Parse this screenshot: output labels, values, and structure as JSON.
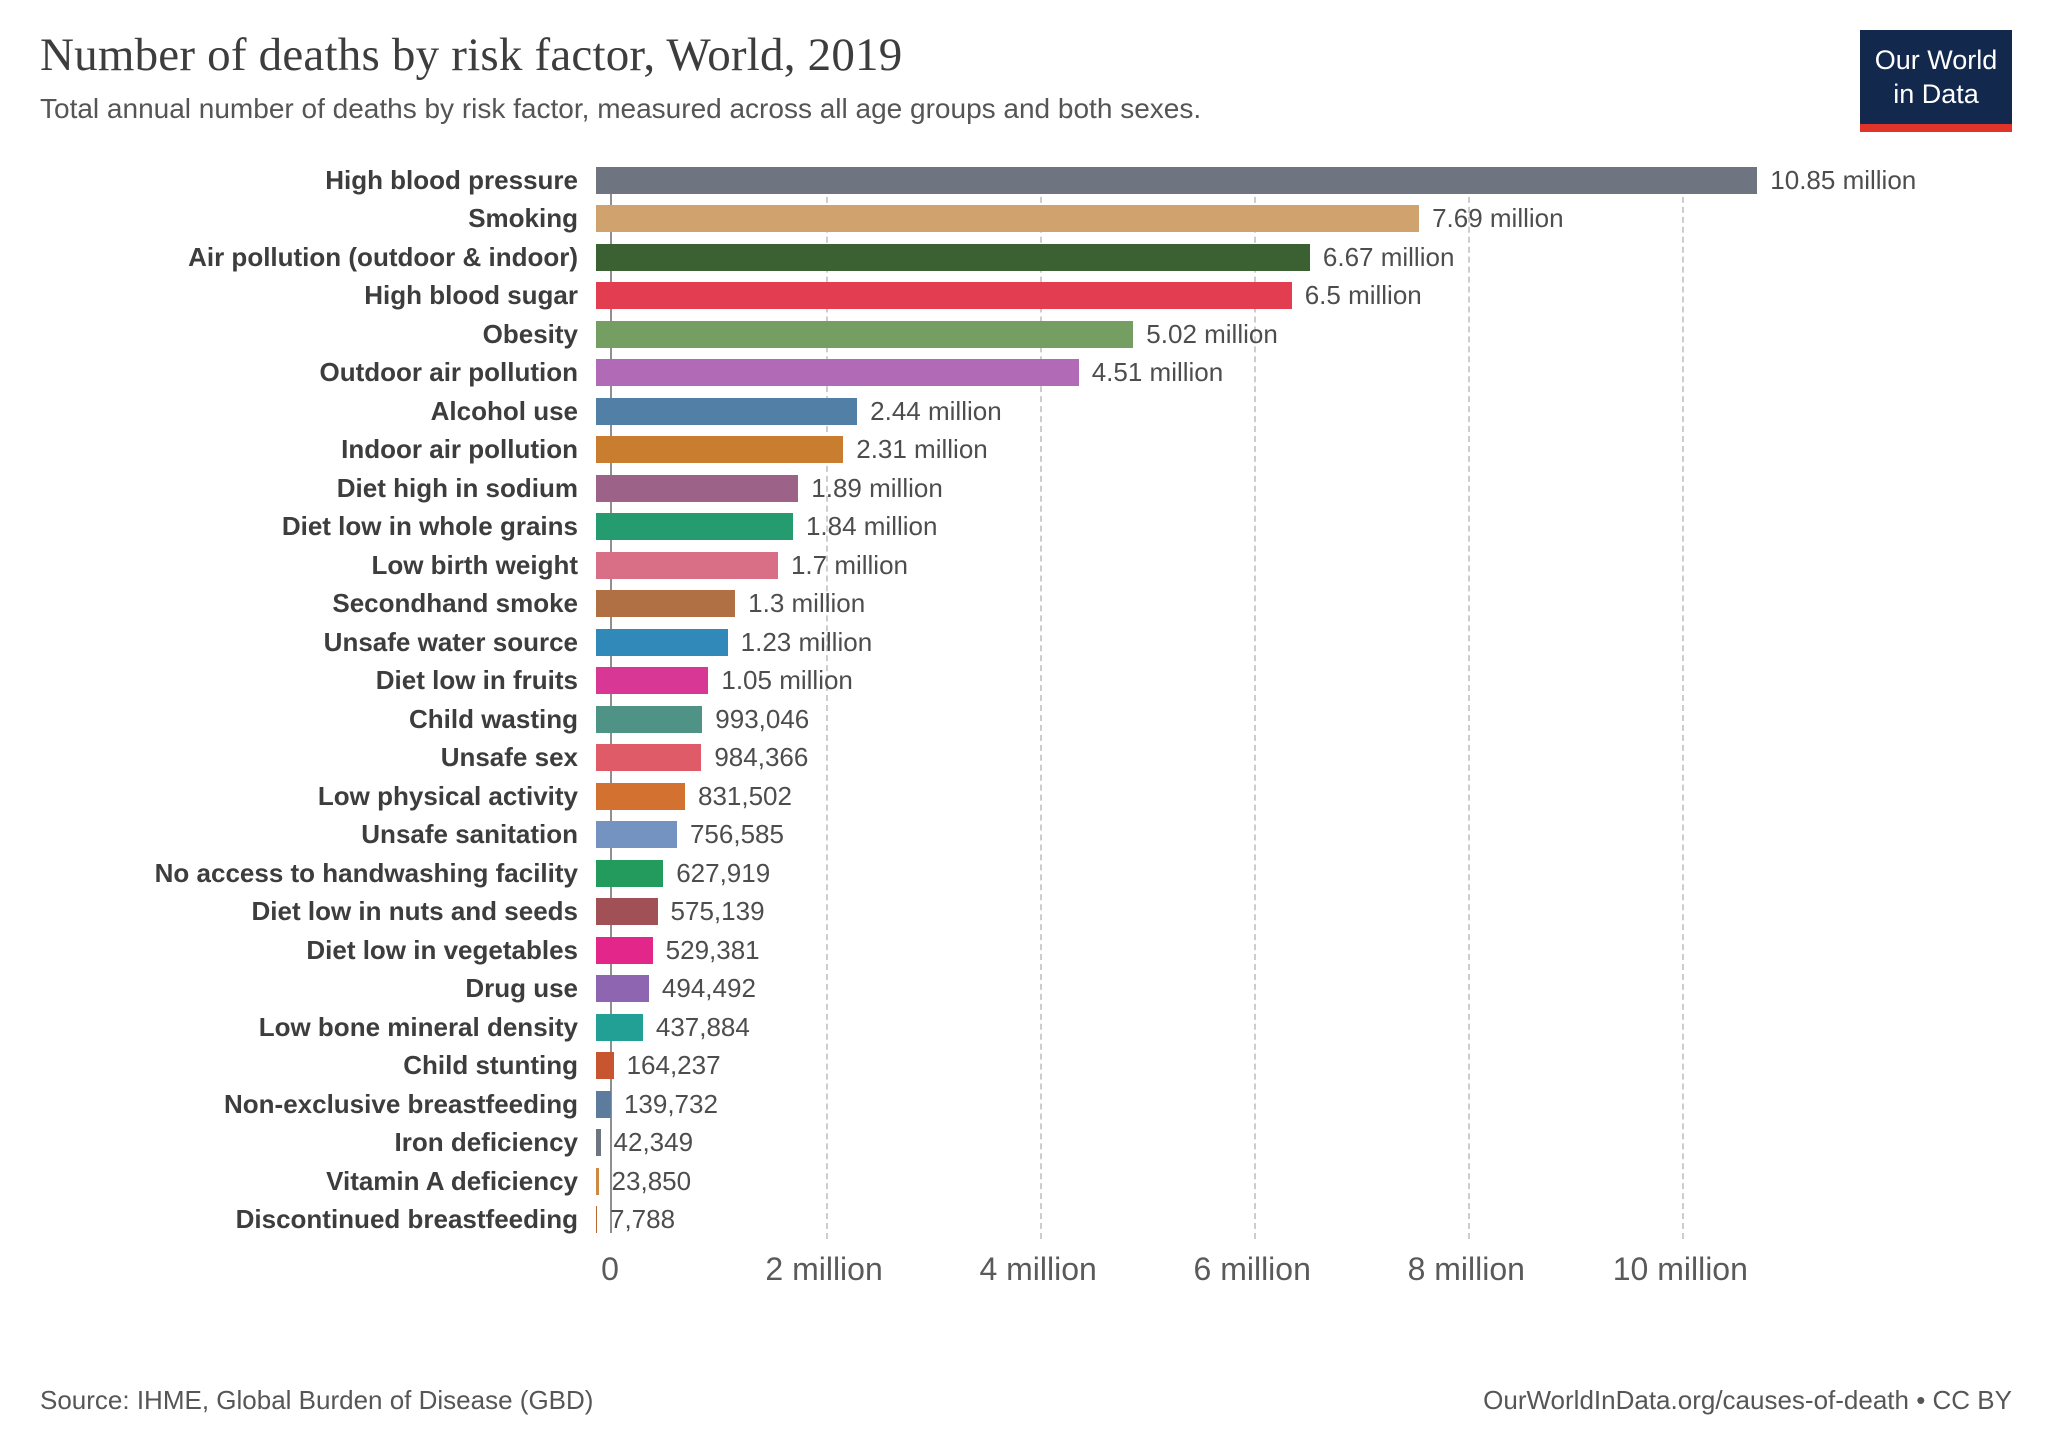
{
  "header": {
    "title": "Number of deaths by risk factor, World, 2019",
    "subtitle": "Total annual number of deaths by risk factor, measured across all age groups and both sexes."
  },
  "logo": {
    "line1": "Our World",
    "line2": "in Data",
    "navy": "#12294d",
    "red": "#e0342a"
  },
  "footer": {
    "source": "Source: IHME, Global Burden of Disease (GBD)",
    "credit": "OurWorldInData.org/causes-of-death • CC BY"
  },
  "chart_data": {
    "type": "bar",
    "orientation": "horizontal",
    "title": "Number of deaths by risk factor, World, 2019",
    "xlabel": "Deaths",
    "ylabel": "Risk factor",
    "xlim": [
      0,
      12800000
    ],
    "grid": "dashed-vertical",
    "ticks": [
      {
        "value": 0,
        "label": "0"
      },
      {
        "value": 2000000,
        "label": "2 million"
      },
      {
        "value": 4000000,
        "label": "4 million"
      },
      {
        "value": 6000000,
        "label": "6 million"
      },
      {
        "value": 8000000,
        "label": "8 million"
      },
      {
        "value": 10000000,
        "label": "10 million"
      }
    ],
    "rows": [
      {
        "label": "High blood pressure",
        "value": 10850000,
        "value_label": "10.85 million",
        "color": "#6e7581"
      },
      {
        "label": "Smoking",
        "value": 7690000,
        "value_label": "7.69 million",
        "color": "#cfa26e"
      },
      {
        "label": "Air pollution (outdoor & indoor)",
        "value": 6670000,
        "value_label": "6.67 million",
        "color": "#3b6133"
      },
      {
        "label": "High blood sugar",
        "value": 6500000,
        "value_label": "6.5 million",
        "color": "#e23d51"
      },
      {
        "label": "Obesity",
        "value": 5020000,
        "value_label": "5.02 million",
        "color": "#749e62"
      },
      {
        "label": "Outdoor air pollution",
        "value": 4510000,
        "value_label": "4.51 million",
        "color": "#b06ab6"
      },
      {
        "label": "Alcohol use",
        "value": 2440000,
        "value_label": "2.44 million",
        "color": "#527fa6"
      },
      {
        "label": "Indoor air pollution",
        "value": 2310000,
        "value_label": "2.31 million",
        "color": "#c97e2f"
      },
      {
        "label": "Diet high in sodium",
        "value": 1890000,
        "value_label": "1.89 million",
        "color": "#9d6288"
      },
      {
        "label": "Diet low in whole grains",
        "value": 1840000,
        "value_label": "1.84 million",
        "color": "#259b70"
      },
      {
        "label": "Low birth weight",
        "value": 1700000,
        "value_label": "1.7 million",
        "color": "#d96e87"
      },
      {
        "label": "Secondhand smoke",
        "value": 1300000,
        "value_label": "1.3 million",
        "color": "#b17044"
      },
      {
        "label": "Unsafe water source",
        "value": 1230000,
        "value_label": "1.23 million",
        "color": "#3089b8"
      },
      {
        "label": "Diet low in fruits",
        "value": 1050000,
        "value_label": "1.05 million",
        "color": "#d93795"
      },
      {
        "label": "Child wasting",
        "value": 993046,
        "value_label": "993,046",
        "color": "#4f9386"
      },
      {
        "label": "Unsafe sex",
        "value": 984366,
        "value_label": "984,366",
        "color": "#e05b68"
      },
      {
        "label": "Low physical activity",
        "value": 831502,
        "value_label": "831,502",
        "color": "#d27130"
      },
      {
        "label": "Unsafe sanitation",
        "value": 756585,
        "value_label": "756,585",
        "color": "#7593c0"
      },
      {
        "label": "No access to handwashing facility",
        "value": 627919,
        "value_label": "627,919",
        "color": "#239b5c"
      },
      {
        "label": "Diet low in nuts and seeds",
        "value": 575139,
        "value_label": "575,139",
        "color": "#a15055"
      },
      {
        "label": "Diet low in vegetables",
        "value": 529381,
        "value_label": "529,381",
        "color": "#e3278a"
      },
      {
        "label": "Drug use",
        "value": 494492,
        "value_label": "494,492",
        "color": "#8d65b0"
      },
      {
        "label": "Low bone mineral density",
        "value": 437884,
        "value_label": "437,884",
        "color": "#22a096"
      },
      {
        "label": "Child stunting",
        "value": 164237,
        "value_label": "164,237",
        "color": "#c75530"
      },
      {
        "label": "Non-exclusive breastfeeding",
        "value": 139732,
        "value_label": "139,732",
        "color": "#5d7b9c"
      },
      {
        "label": "Iron deficiency",
        "value": 42349,
        "value_label": "42,349",
        "color": "#6e7581"
      },
      {
        "label": "Vitamin A deficiency",
        "value": 23850,
        "value_label": "23,850",
        "color": "#cc8a45"
      },
      {
        "label": "Discontinued breastfeeding",
        "value": 7788,
        "value_label": "7,788",
        "color": "#b5682f"
      }
    ]
  }
}
